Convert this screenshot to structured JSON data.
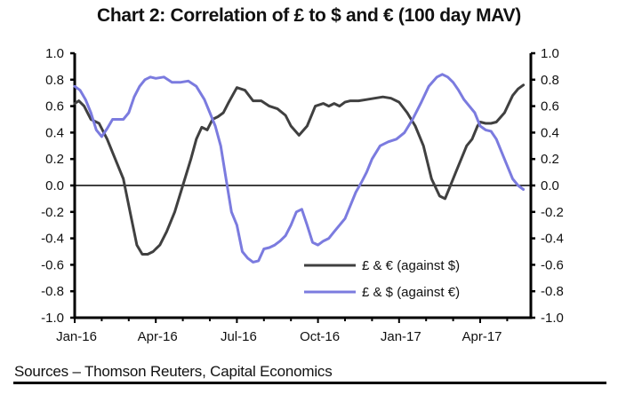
{
  "chart_data": {
    "type": "line",
    "title": "Chart 2: Correlation of £ to $ and € (100 day MAV)",
    "xlabel": "",
    "ylabel": "",
    "ylim": [
      -1.0,
      1.0
    ],
    "y_ticks": [
      "1.0",
      "0.8",
      "0.6",
      "0.4",
      "0.2",
      "0.0",
      "-0.2",
      "-0.4",
      "-0.6",
      "-0.8",
      "-1.0"
    ],
    "y_tick_values": [
      1.0,
      0.8,
      0.6,
      0.4,
      0.2,
      0.0,
      -0.2,
      -0.4,
      -0.6,
      -0.8,
      -1.0
    ],
    "right_axis_ticks": [
      "1.0",
      "0.8",
      "0.6",
      "0.4",
      "0.2",
      "0.0",
      "-0.2",
      "-0.4",
      "-0.6",
      "-0.8",
      "-1.0"
    ],
    "x_tick_labels": [
      "Jan-16",
      "Apr-16",
      "Jul-16",
      "Oct-16",
      "Jan-17",
      "Apr-17"
    ],
    "x_tick_label_months": [
      0,
      3,
      6,
      9,
      12,
      15
    ],
    "x_range_months": [
      0,
      17
    ],
    "x_unit": "months since Jan-2016",
    "zero_line": true,
    "grid": false,
    "legend_position": "bottom-right",
    "series": [
      {
        "name": "£ & € (against $)",
        "color": "#404040",
        "x": [
          0,
          0.15,
          0.35,
          0.6,
          0.9,
          1.2,
          1.5,
          1.8,
          2.1,
          2.3,
          2.5,
          2.7,
          2.9,
          3.0,
          3.15,
          3.4,
          3.7,
          4.0,
          4.3,
          4.5,
          4.7,
          4.9,
          5.1,
          5.3,
          5.5,
          5.7,
          6.0,
          6.3,
          6.6,
          6.9,
          7.2,
          7.5,
          7.8,
          8.0,
          8.3,
          8.6,
          8.9,
          9.2,
          9.4,
          9.6,
          9.8,
          10.0,
          10.2,
          10.5,
          10.8,
          11.1,
          11.4,
          11.7,
          12.0,
          12.3,
          12.6,
          12.9,
          13.2,
          13.5,
          13.7,
          13.9,
          14.1,
          14.3,
          14.5,
          14.7,
          14.9,
          15.0,
          15.2,
          15.4,
          15.6,
          15.9,
          16.2,
          16.4,
          16.6
        ],
        "y": [
          0.62,
          0.64,
          0.6,
          0.5,
          0.47,
          0.35,
          0.2,
          0.05,
          -0.25,
          -0.45,
          -0.52,
          -0.52,
          -0.5,
          -0.48,
          -0.45,
          -0.35,
          -0.2,
          0.0,
          0.2,
          0.35,
          0.44,
          0.42,
          0.5,
          0.52,
          0.55,
          0.63,
          0.74,
          0.72,
          0.64,
          0.64,
          0.6,
          0.58,
          0.53,
          0.45,
          0.38,
          0.45,
          0.6,
          0.62,
          0.6,
          0.62,
          0.6,
          0.63,
          0.64,
          0.64,
          0.65,
          0.66,
          0.67,
          0.66,
          0.63,
          0.55,
          0.45,
          0.3,
          0.05,
          -0.08,
          -0.1,
          0.0,
          0.1,
          0.2,
          0.3,
          0.35,
          0.45,
          0.48,
          0.47,
          0.47,
          0.48,
          0.55,
          0.68,
          0.73,
          0.76
        ]
      },
      {
        "name": "£ & $ (against €)",
        "color": "#7b7bdf",
        "x": [
          0,
          0.2,
          0.4,
          0.6,
          0.8,
          1.0,
          1.2,
          1.4,
          1.6,
          1.8,
          2.0,
          2.2,
          2.4,
          2.6,
          2.8,
          3.0,
          3.3,
          3.6,
          3.9,
          4.2,
          4.5,
          4.8,
          5.0,
          5.2,
          5.4,
          5.6,
          5.8,
          6.0,
          6.2,
          6.4,
          6.6,
          6.8,
          7.0,
          7.2,
          7.4,
          7.6,
          7.8,
          8.0,
          8.2,
          8.4,
          8.6,
          8.8,
          9.0,
          9.2,
          9.4,
          9.6,
          9.8,
          10.0,
          10.2,
          10.4,
          10.6,
          10.8,
          11.0,
          11.3,
          11.6,
          11.9,
          12.2,
          12.5,
          12.8,
          13.1,
          13.4,
          13.6,
          13.8,
          14.0,
          14.2,
          14.4,
          14.6,
          14.8,
          15.0,
          15.2,
          15.4,
          15.6,
          15.8,
          16.0,
          16.2,
          16.4,
          16.6
        ],
        "y": [
          0.75,
          0.72,
          0.65,
          0.55,
          0.42,
          0.37,
          0.43,
          0.5,
          0.5,
          0.5,
          0.55,
          0.67,
          0.75,
          0.8,
          0.82,
          0.81,
          0.82,
          0.78,
          0.78,
          0.79,
          0.75,
          0.65,
          0.55,
          0.45,
          0.3,
          0.05,
          -0.2,
          -0.3,
          -0.5,
          -0.55,
          -0.58,
          -0.57,
          -0.48,
          -0.47,
          -0.45,
          -0.42,
          -0.38,
          -0.3,
          -0.2,
          -0.18,
          -0.3,
          -0.43,
          -0.45,
          -0.42,
          -0.4,
          -0.35,
          -0.3,
          -0.25,
          -0.15,
          -0.05,
          0.02,
          0.1,
          0.2,
          0.3,
          0.33,
          0.35,
          0.4,
          0.5,
          0.62,
          0.75,
          0.82,
          0.84,
          0.82,
          0.78,
          0.72,
          0.65,
          0.6,
          0.55,
          0.45,
          0.42,
          0.41,
          0.35,
          0.25,
          0.15,
          0.05,
          0.0,
          -0.03
        ]
      }
    ]
  },
  "footer": {
    "source": "Sources – Thomson Reuters, Capital Economics"
  }
}
